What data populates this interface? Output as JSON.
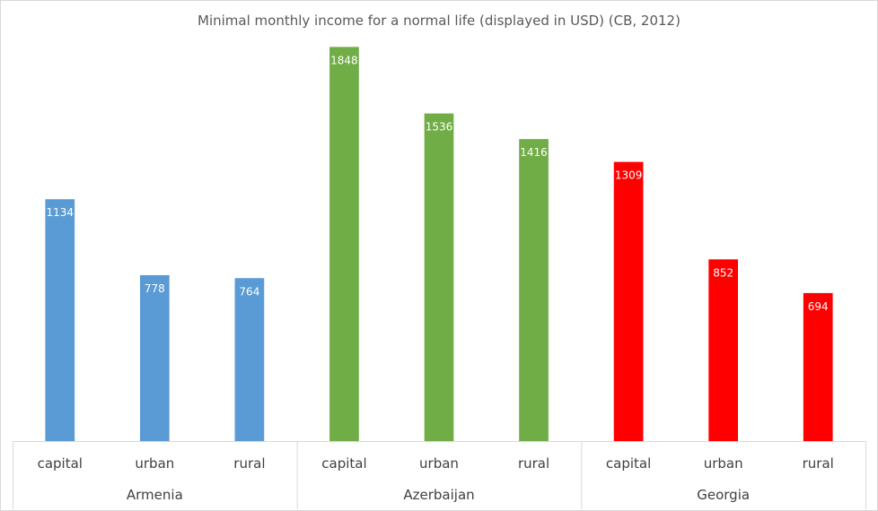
{
  "chart_data": {
    "type": "bar",
    "title": "Minimal monthly income for a normal life (displayed in USD) (CB, 2012)",
    "xlabel": "",
    "ylabel": "",
    "ylim": [
      0,
      1900
    ],
    "grid": false,
    "legend": "none",
    "data_labels": true,
    "groups": [
      {
        "name": "Armenia",
        "color": "#5b9bd5",
        "categories": [
          "capital",
          "urban",
          "rural"
        ],
        "values": [
          1134,
          778,
          764
        ]
      },
      {
        "name": "Azerbaijan",
        "color": "#70ad47",
        "categories": [
          "capital",
          "urban",
          "rural"
        ],
        "values": [
          1848,
          1536,
          1416
        ]
      },
      {
        "name": "Georgia",
        "color": "#ff0000",
        "categories": [
          "capital",
          "urban",
          "rural"
        ],
        "values": [
          1309,
          852,
          694
        ]
      }
    ]
  }
}
